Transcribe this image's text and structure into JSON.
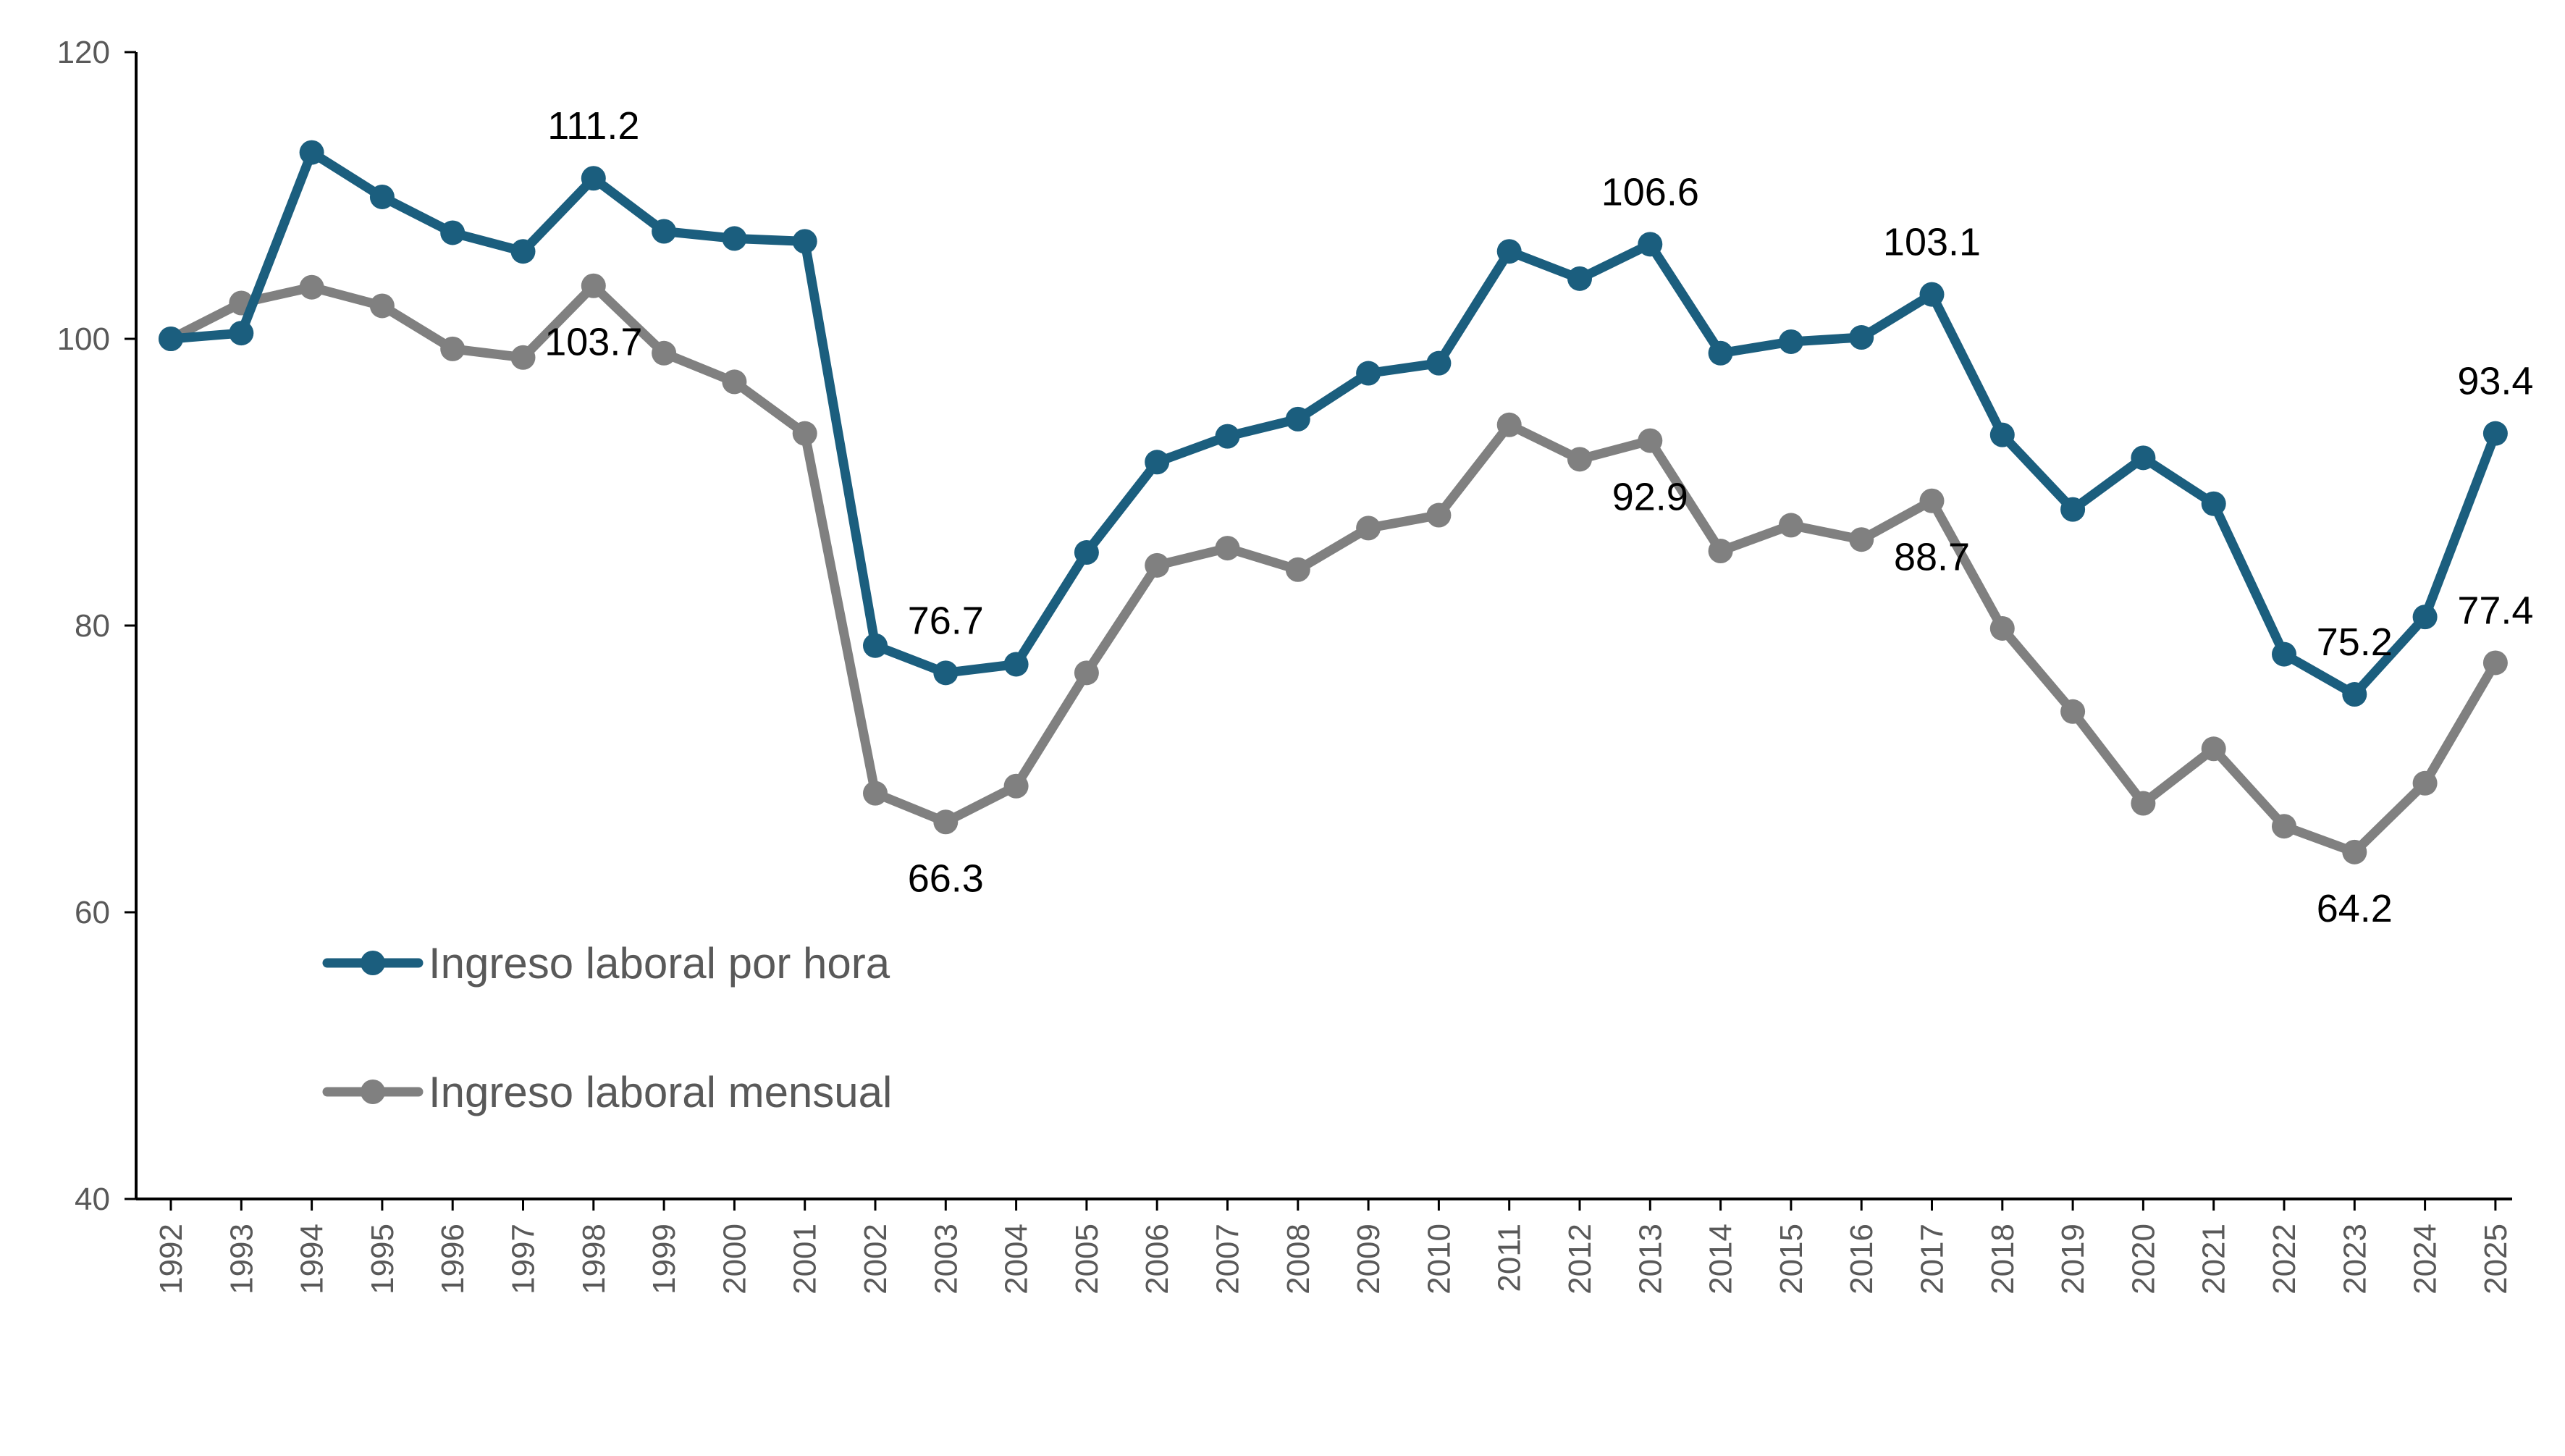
{
  "chart_data": {
    "type": "line",
    "title": "",
    "xlabel": "",
    "ylabel": "",
    "ylim": [
      40,
      120
    ],
    "yticks": [
      40,
      60,
      80,
      100,
      120
    ],
    "grid": false,
    "legend_position": "bottom-left",
    "categories": [
      "1992",
      "1993",
      "1994",
      "1995",
      "1996",
      "1997",
      "1998",
      "1999",
      "2000",
      "2001",
      "2002",
      "2003",
      "2004",
      "2005",
      "2006",
      "2007",
      "2008",
      "2009",
      "2010",
      "2011",
      "2012",
      "2013",
      "2014",
      "2015",
      "2016",
      "2017",
      "2018",
      "2019",
      "2020",
      "2021",
      "2022",
      "2023",
      "2024",
      "2025"
    ],
    "series": [
      {
        "name": "Ingreso laboral por hora",
        "color": "#1b5e7e",
        "values": [
          100,
          100.4,
          113,
          109.9,
          107.4,
          106.1,
          111.2,
          107.5,
          107,
          106.8,
          78.6,
          76.7,
          77.3,
          85.1,
          91.4,
          93.2,
          94.4,
          97.6,
          98.3,
          106.1,
          104.2,
          106.6,
          99,
          99.8,
          100.1,
          103.1,
          93.3,
          88.1,
          91.7,
          88.5,
          78,
          75.2,
          80.6,
          93.4
        ],
        "annotations": [
          {
            "year": "1998",
            "text": "111.2",
            "placement": "above"
          },
          {
            "year": "2003",
            "text": "76.7",
            "placement": "above"
          },
          {
            "year": "2013",
            "text": "106.6",
            "placement": "above"
          },
          {
            "year": "2017",
            "text": "103.1",
            "placement": "above"
          },
          {
            "year": "2023",
            "text": "75.2",
            "placement": "above"
          },
          {
            "year": "2025",
            "text": "93.4",
            "placement": "above"
          }
        ]
      },
      {
        "name": "Ingreso laboral mensual",
        "color": "#808080",
        "values": [
          100,
          102.5,
          103.6,
          102.3,
          99.3,
          98.7,
          103.7,
          99,
          97,
          93.4,
          68.3,
          66.3,
          68.8,
          76.7,
          84.2,
          85.4,
          83.9,
          86.8,
          87.7,
          94,
          91.6,
          92.9,
          85.2,
          87,
          86,
          88.7,
          79.8,
          74,
          67.6,
          71.4,
          66,
          64.2,
          69,
          77.4
        ],
        "annotations": [
          {
            "year": "1998",
            "text": "103.7",
            "placement": "below"
          },
          {
            "year": "2003",
            "text": "66.3",
            "placement": "below"
          },
          {
            "year": "2013",
            "text": "92.9",
            "placement": "below"
          },
          {
            "year": "2017",
            "text": "88.7",
            "placement": "below"
          },
          {
            "year": "2023",
            "text": "64.2",
            "placement": "below"
          },
          {
            "year": "2025",
            "text": "77.4",
            "placement": "above"
          }
        ]
      }
    ]
  }
}
